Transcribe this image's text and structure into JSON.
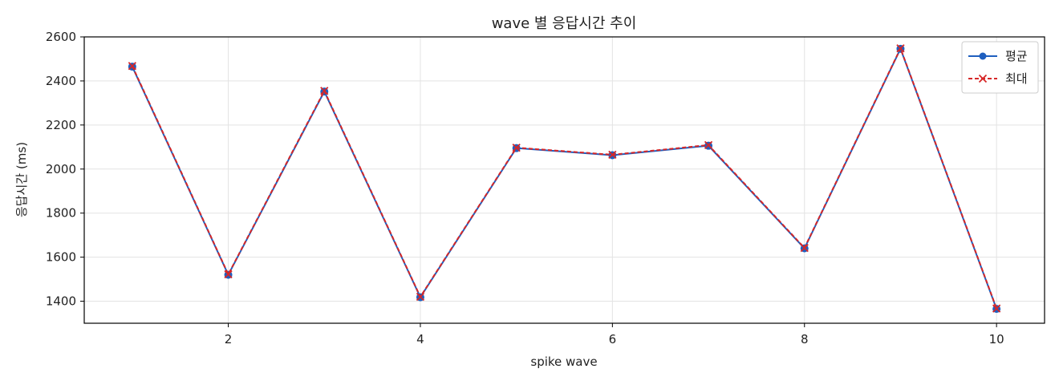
{
  "chart_data": {
    "type": "line",
    "title": "wave 별 응답시간 추이",
    "xlabel": "spike wave",
    "ylabel": "응답시간 (ms)",
    "x": [
      1,
      2,
      3,
      4,
      5,
      6,
      7,
      8,
      9,
      10
    ],
    "series": [
      {
        "name": "평균",
        "values": [
          2465,
          1520,
          2352,
          1418,
          2095,
          2063,
          2106,
          1640,
          2546,
          1365
        ],
        "color": "#1f5fbf",
        "marker": "circle",
        "linestyle": "solid"
      },
      {
        "name": "최대",
        "values": [
          2468,
          1522,
          2355,
          1420,
          2097,
          2065,
          2109,
          1642,
          2548,
          1367
        ],
        "color": "#d62728",
        "marker": "x",
        "linestyle": "dashed"
      }
    ],
    "xlim": [
      0.5,
      10.5
    ],
    "ylim": [
      1300,
      2600
    ],
    "xticks": [
      "2",
      "4",
      "6",
      "8",
      "10"
    ],
    "yticks": [
      "1400",
      "1600",
      "1800",
      "2000",
      "2200",
      "2400",
      "2600"
    ],
    "grid": true,
    "legend_position": "upper right"
  }
}
